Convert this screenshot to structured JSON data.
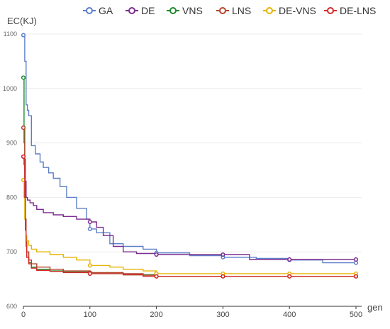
{
  "chart_data": {
    "type": "line",
    "step": true,
    "ylabel": "EC(KJ)",
    "xlabel": "gen",
    "xlim": [
      0,
      500
    ],
    "ylim": [
      600,
      1100
    ],
    "x_ticks": [
      "0",
      "100",
      "200",
      "300",
      "400",
      "500"
    ],
    "y_ticks": [
      "600",
      "700",
      "800",
      "900",
      "1000",
      "1100"
    ],
    "grid": true,
    "legend_position": "top",
    "marker_x": [
      0,
      100,
      200,
      300,
      400,
      500
    ],
    "series": [
      {
        "name": "GA",
        "color": "#5b7fc9",
        "x": [
          0,
          2,
          4,
          6,
          8,
          12,
          18,
          25,
          30,
          38,
          45,
          55,
          65,
          80,
          95,
          100,
          110,
          130,
          150,
          180,
          200,
          250,
          300,
          350,
          400,
          450,
          500
        ],
        "y": [
          1098,
          1050,
          970,
          960,
          950,
          895,
          880,
          865,
          855,
          845,
          835,
          820,
          800,
          780,
          760,
          742,
          735,
          715,
          710,
          705,
          698,
          693,
          690,
          688,
          685,
          680,
          680
        ]
      },
      {
        "name": "DE",
        "color": "#7b2c8f",
        "x": [
          0,
          1,
          2,
          3,
          4,
          6,
          10,
          15,
          20,
          30,
          45,
          60,
          80,
          100,
          110,
          120,
          135,
          150,
          170,
          200,
          250,
          300,
          340,
          400,
          450,
          500
        ],
        "y": [
          875,
          870,
          835,
          830,
          800,
          795,
          790,
          785,
          778,
          772,
          768,
          765,
          760,
          755,
          745,
          730,
          710,
          700,
          697,
          695,
          695,
          695,
          686,
          686,
          686,
          686
        ]
      },
      {
        "name": "VNS",
        "color": "#1e8a2e",
        "x": [
          0,
          1,
          2,
          3,
          4,
          5,
          8,
          12,
          20,
          40,
          60,
          100,
          150,
          200,
          300,
          400,
          500
        ],
        "y": [
          1020,
          930,
          870,
          760,
          720,
          700,
          680,
          672,
          668,
          665,
          663,
          660,
          658,
          655,
          655,
          655,
          655
        ]
      },
      {
        "name": "LNS",
        "color": "#b5432a",
        "x": [
          0,
          1,
          2,
          3,
          4,
          5,
          8,
          12,
          20,
          40,
          60,
          100,
          150,
          180,
          200,
          300,
          400,
          500
        ],
        "y": [
          928,
          900,
          850,
          760,
          720,
          700,
          685,
          678,
          672,
          668,
          665,
          662,
          660,
          657,
          655,
          655,
          655,
          655
        ]
      },
      {
        "name": "DE-VNS",
        "color": "#e6b400",
        "x": [
          0,
          1,
          2,
          3,
          4,
          5,
          8,
          12,
          20,
          40,
          60,
          80,
          100,
          130,
          150,
          180,
          200,
          300,
          400,
          500
        ],
        "y": [
          832,
          800,
          760,
          740,
          730,
          720,
          712,
          705,
          700,
          695,
          690,
          685,
          675,
          672,
          668,
          665,
          660,
          660,
          660,
          660
        ]
      },
      {
        "name": "DE-LNS",
        "color": "#d42a2a",
        "x": [
          0,
          1,
          2,
          3,
          4,
          5,
          8,
          12,
          20,
          40,
          60,
          100,
          150,
          180,
          200,
          300,
          400,
          500
        ],
        "y": [
          875,
          860,
          800,
          740,
          710,
          690,
          678,
          670,
          666,
          664,
          662,
          660,
          658,
          655,
          655,
          655,
          655,
          655
        ]
      }
    ]
  }
}
